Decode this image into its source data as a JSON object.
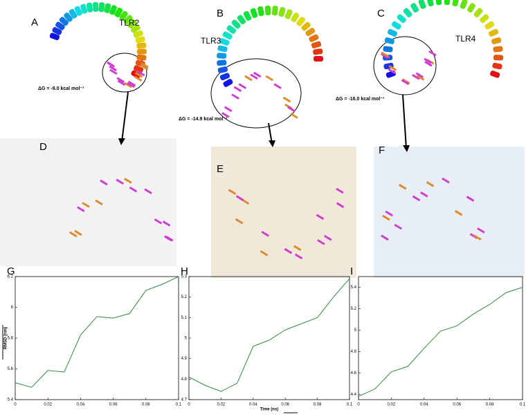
{
  "panels": [
    {
      "label": "A",
      "protein": "TLR2",
      "energy": "ΔG = -9.0 kcal mol⁻¹"
    },
    {
      "label": "B",
      "protein": "TLR3",
      "energy": "ΔG = -14.9 kcal mol⁻¹"
    },
    {
      "label": "C",
      "protein": "TLR4",
      "energy": "ΔG = -16.0 kcal mol⁻¹"
    },
    {
      "label": "D"
    },
    {
      "label": "E"
    },
    {
      "label": "F"
    }
  ],
  "chart_data": [
    {
      "type": "line",
      "title": "G",
      "ylabel": "RMSD (nm)",
      "color": "#2e8b3a",
      "x": [
        0,
        0.01,
        0.02,
        0.03,
        0.04,
        0.05,
        0.06,
        0.07,
        0.08,
        0.09,
        0.1
      ],
      "values": [
        5.51,
        5.48,
        5.59,
        5.58,
        5.82,
        5.94,
        5.93,
        5.96,
        6.11,
        6.15,
        6.2
      ],
      "xlim": [
        0,
        0.1
      ],
      "xticks": [
        0,
        0.02,
        0.04,
        0.06,
        0.08,
        0.1
      ],
      "ylim": [
        5.4,
        6.2
      ],
      "yticks": [
        5.4,
        5.6,
        5.8,
        6,
        6.2
      ]
    },
    {
      "type": "line",
      "title": "H",
      "xlabel": "Time (ns)",
      "color": "#2e8b3a",
      "x": [
        0,
        0.01,
        0.02,
        0.03,
        0.04,
        0.05,
        0.06,
        0.07,
        0.08,
        0.09,
        0.1
      ],
      "values": [
        4.81,
        4.77,
        4.74,
        4.78,
        4.96,
        4.99,
        5.04,
        5.07,
        5.1,
        5.2,
        5.29
      ],
      "xlim": [
        0,
        0.1
      ],
      "xticks": [
        0,
        0.02,
        0.04,
        0.06,
        0.08,
        0.1
      ],
      "ylim": [
        4.7,
        5.3
      ],
      "yticks": [
        4.7,
        4.8,
        4.9,
        5,
        5.1,
        5.2,
        5.3
      ]
    },
    {
      "type": "line",
      "title": "I",
      "color": "#2e8b3a",
      "x": [
        0,
        0.01,
        0.02,
        0.03,
        0.04,
        0.05,
        0.06,
        0.07,
        0.08,
        0.09,
        0.1
      ],
      "values": [
        4.38,
        4.45,
        4.61,
        4.66,
        4.83,
        4.99,
        5.04,
        5.15,
        5.24,
        5.35,
        5.4
      ],
      "xlim": [
        0,
        0.1
      ],
      "xticks": [
        0,
        0.02,
        0.04,
        0.06,
        0.08,
        0.1
      ],
      "ylim": [
        4.35,
        5.5
      ],
      "yticks": [
        4.4,
        4.6,
        4.8,
        5,
        5.2,
        5.4
      ]
    }
  ]
}
